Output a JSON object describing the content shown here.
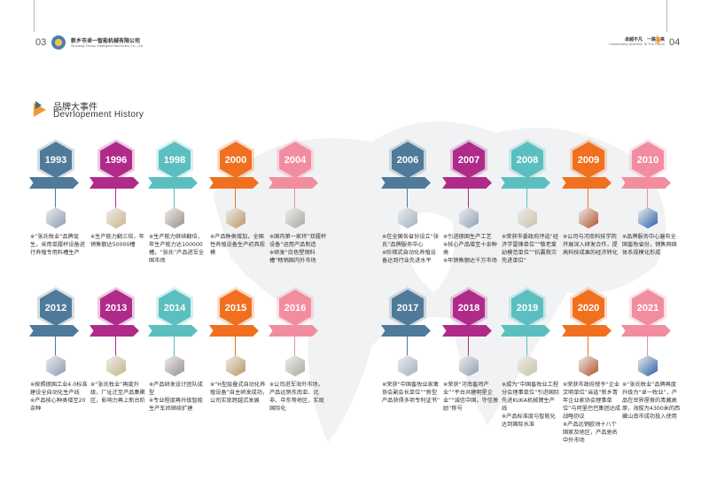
{
  "header": {
    "left_page": "03",
    "right_page": "04",
    "company_cn": "新乡市卓一智能机械有限公司",
    "company_en": "Xinxiang Zhuoyi Intelligent Machinery Co., Ltd",
    "slogan_cn": "卓越不凡　一路未来",
    "slogan_en": "Outstanding Ambition To The Future"
  },
  "section": {
    "title_cn": "品牌大事件",
    "title_en": "Devrlopement History"
  },
  "colors": [
    "#4f7a99",
    "#b02a8a",
    "#5bbfbf",
    "#f07020",
    "#f28da0"
  ],
  "events": [
    {
      "year": "1993",
      "icon": "logo-seal-image",
      "text": "※“张氏牧业”品牌诞生，采用单履杆设备进行养殖专用料槽生产"
    },
    {
      "year": "1996",
      "icon": "metal-fan-image",
      "text": "※生产能力翻三倍，年销售额达50000槽"
    },
    {
      "year": "1998",
      "icon": "handshake-image",
      "text": "※生产能力继续翻倍，年生产能力达100000槽，“张氏”产品进军全国市场"
    },
    {
      "year": "2000",
      "icon": "product-image",
      "text": "※产品种类增加，全国性养殖设备生产初具规模"
    },
    {
      "year": "2004",
      "icon": "product-image",
      "text": "※国内第一家将“双履杆设备”运用产品制造\n※研发“白色塑钢料槽”畅销国内外市场"
    },
    {
      "year": "2006",
      "icon": "office-image",
      "text": "※在全国各省份设立“张氏”品牌服务中心\n※阶梯式自动化养殖设备达到行业先进水平"
    },
    {
      "year": "2007",
      "icon": "factory-image",
      "text": "※引进德国生产工艺\n※核心产品增至十余种类\n※年销售额达千万市场"
    },
    {
      "year": "2008",
      "icon": "office-image",
      "text": "※荣获市委政府评选“经济学雷锋单位”“敬老爱幼模范单位”“抗震救灾先进单位”"
    },
    {
      "year": "2009",
      "icon": "truck-image",
      "text": "※公司与河南科技学院开展深入研发合作，提高科技成果的经济转化"
    },
    {
      "year": "2010",
      "icon": "network-image",
      "text": "※品牌服务中心遍布全国畜牧省份，销售网络体系规模化形成"
    },
    {
      "year": "2012",
      "icon": "workshop-image",
      "text": "※按照德国工业4.0标准建设全自动化生产线\n※产品核心种类增至20余种"
    },
    {
      "year": "2013",
      "icon": "building-image",
      "text": "※“张氏牧业”再度升级，厂址迁至产品集聚区，影响力再上新台阶"
    },
    {
      "year": "2014",
      "icon": "team-image",
      "text": "※产品研发设计团队成型\n※专业程度再升级智能生产车间继续扩建"
    },
    {
      "year": "2015",
      "icon": "equipment-image",
      "text": "※“H型层叠式自动化养殖设备”自主研发成功，公司实现跨越式发展"
    },
    {
      "year": "2016",
      "icon": "globe-image",
      "text": "※公司进军海外市场，产品远销东南亚、北非、中东等地区，实现国际化"
    },
    {
      "year": "2017",
      "icon": "award-image",
      "text": "※荣获“中国畜牧业家禽协会副会长单位”“新型产品获得多项专利证书”"
    },
    {
      "year": "2018",
      "icon": "farm-image",
      "text": "※荣获“河南畜鸡产业”“平台共建明星企业”“诚信中国，守信激励”称号"
    },
    {
      "year": "2019",
      "icon": "robot-image",
      "text": "※成为“中国畜牧业工程分会理事单位”引进国际先进KUKA机械臂生产线\n※产品标准度与智能化达到国际水准"
    },
    {
      "year": "2020",
      "icon": "meeting-image",
      "text": "※荣获市政府授予“企业文明单位”当选“新乡青年企业家协会理事单位”与阿里巴巴集团达成战略协议\n※产品远销欧洲十八个国家及地区，产品驰名中外市场"
    },
    {
      "year": "2021",
      "icon": "skyline-image",
      "text": "※“张氏牧业”品牌再度升级为“卓一牧业”，产品在世界屋脊的青藏高原，海拔为4300米的西藏山南市成功投入使用"
    }
  ]
}
